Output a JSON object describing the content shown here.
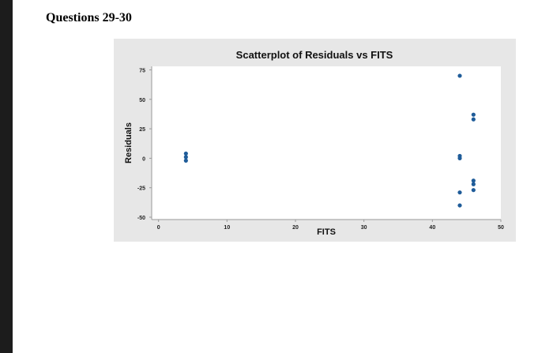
{
  "page": {
    "heading": "Questions 29-30"
  },
  "chart_data": {
    "type": "scatter",
    "title": "Scatterplot of Residuals vs FITS",
    "xlabel": "FITS",
    "ylabel": "Residuals",
    "xlim": [
      -1,
      50
    ],
    "ylim": [
      -52,
      78
    ],
    "xticks": [
      0,
      10,
      20,
      30,
      40,
      50
    ],
    "yticks": [
      -50,
      -25,
      0,
      25,
      50,
      75
    ],
    "grid": false,
    "marker_color": "#1f5c99",
    "points": [
      {
        "x": 4,
        "y": 4
      },
      {
        "x": 4,
        "y": 1
      },
      {
        "x": 4,
        "y": -2
      },
      {
        "x": 44,
        "y": 70
      },
      {
        "x": 44,
        "y": 2
      },
      {
        "x": 44,
        "y": 0
      },
      {
        "x": 44,
        "y": -29
      },
      {
        "x": 44,
        "y": -40
      },
      {
        "x": 46,
        "y": 37
      },
      {
        "x": 46,
        "y": 33
      },
      {
        "x": 46,
        "y": -19
      },
      {
        "x": 46,
        "y": -22
      },
      {
        "x": 46,
        "y": -27
      }
    ]
  }
}
